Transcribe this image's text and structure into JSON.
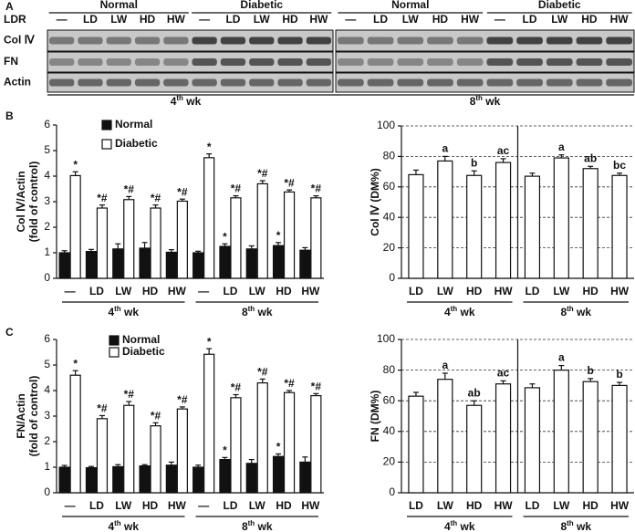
{
  "panel_a": {
    "label": "A",
    "row_header": "LDR",
    "conditions": [
      "Normal",
      "Diabetic",
      "Normal",
      "Diabetic"
    ],
    "lanes": [
      "—",
      "LD",
      "LW",
      "HD",
      "HW",
      "—",
      "LD",
      "LW",
      "HD",
      "HW",
      "—",
      "LD",
      "LW",
      "HD",
      "HW",
      "—",
      "LD",
      "LW",
      "HD",
      "HW"
    ],
    "rows": [
      "Col Ⅳ",
      "FN",
      "Actin"
    ],
    "weeks": [
      "4th wk",
      "8th wk"
    ]
  },
  "chart_data": [
    {
      "type": "grouped_bar",
      "panel": "B",
      "ylabel": [
        "Col Ⅳ/Actin",
        "(fold of control)"
      ],
      "categories": [
        "—",
        "LD",
        "LW",
        "HD",
        "HW",
        "—",
        "LD",
        "LW",
        "HD",
        "HW"
      ],
      "groups": [
        "4th wk",
        "8th wk"
      ],
      "ylim": [
        0,
        6
      ],
      "yticks": [
        0,
        1,
        2,
        3,
        4,
        5,
        6
      ],
      "grid": false,
      "series": [
        {
          "name": "Normal",
          "color": "#111111",
          "values": [
            1.0,
            1.05,
            1.15,
            1.18,
            1.02,
            1.0,
            1.25,
            1.15,
            1.28,
            1.1
          ],
          "errors": [
            0.08,
            0.08,
            0.2,
            0.22,
            0.1,
            0.06,
            0.1,
            0.12,
            0.12,
            0.1
          ],
          "annotations": [
            null,
            null,
            null,
            null,
            null,
            null,
            "*",
            null,
            "*",
            null
          ]
        },
        {
          "name": "Diabetic",
          "color": "#ffffff",
          "values": [
            4.02,
            2.75,
            3.08,
            2.75,
            3.02,
            4.72,
            3.15,
            3.7,
            3.38,
            3.15
          ],
          "errors": [
            0.15,
            0.12,
            0.12,
            0.12,
            0.08,
            0.15,
            0.08,
            0.12,
            0.08,
            0.08
          ],
          "annotations": [
            "*",
            "*#",
            "*#",
            "*#",
            "*#",
            "*",
            "*#",
            "*#",
            "*#",
            "*#"
          ]
        }
      ]
    },
    {
      "type": "bar",
      "ylabel": [
        "Col Ⅳ (DM%)"
      ],
      "categories": [
        "LD",
        "LW",
        "HD",
        "HW",
        "LD",
        "LW",
        "HD",
        "HW"
      ],
      "groups": [
        "4th wk",
        "8th wk"
      ],
      "ylim": [
        0,
        100
      ],
      "yticks": [
        0,
        20,
        40,
        60,
        80,
        100
      ],
      "grid": true,
      "color": "#ffffff",
      "values": [
        68,
        77,
        67.5,
        76,
        67,
        79,
        72,
        67.5
      ],
      "errors": [
        3,
        3,
        3,
        2.5,
        2,
        2,
        1.5,
        1.5
      ],
      "annotations": [
        null,
        "a",
        "b",
        "ac",
        null,
        "a",
        "ab",
        "bc"
      ]
    },
    {
      "type": "grouped_bar",
      "panel": "C",
      "ylabel": [
        "FN/Actin",
        "(fold of control)"
      ],
      "categories": [
        "—",
        "LD",
        "LW",
        "HD",
        "HW",
        "—",
        "LD",
        "LW",
        "HD",
        "HW"
      ],
      "groups": [
        "4th wk",
        "8th wk"
      ],
      "ylim": [
        0,
        6
      ],
      "yticks": [
        0,
        1,
        2,
        3,
        4,
        5,
        6
      ],
      "grid": false,
      "series": [
        {
          "name": "Normal",
          "color": "#111111",
          "values": [
            1.0,
            0.98,
            1.02,
            1.05,
            1.08,
            1.0,
            1.3,
            1.15,
            1.42,
            1.2
          ],
          "errors": [
            0.07,
            0.05,
            0.08,
            0.05,
            0.12,
            0.08,
            0.08,
            0.15,
            0.1,
            0.2
          ],
          "annotations": [
            null,
            null,
            null,
            null,
            null,
            null,
            "*",
            null,
            "*",
            null
          ]
        },
        {
          "name": "Diabetic",
          "color": "#ffffff",
          "values": [
            4.6,
            2.9,
            3.42,
            2.62,
            3.28,
            5.42,
            3.72,
            4.3,
            3.92,
            3.8
          ],
          "errors": [
            0.18,
            0.12,
            0.15,
            0.12,
            0.08,
            0.22,
            0.12,
            0.15,
            0.08,
            0.08
          ],
          "annotations": [
            "*",
            "*#",
            "*#",
            "*#",
            "*#",
            "*",
            "*#",
            "*#",
            "*#",
            "*#"
          ]
        }
      ]
    },
    {
      "type": "bar",
      "ylabel": [
        "FN (DM%)"
      ],
      "categories": [
        "LD",
        "LW",
        "HD",
        "HW",
        "LD",
        "LW",
        "HD",
        "HW"
      ],
      "groups": [
        "4th wk",
        "8th wk"
      ],
      "ylim": [
        0,
        100
      ],
      "yticks": [
        0,
        20,
        40,
        60,
        80,
        100
      ],
      "grid": true,
      "color": "#ffffff",
      "values": [
        63,
        74,
        57,
        71,
        68.5,
        80,
        72.5,
        70
      ],
      "errors": [
        2.5,
        4,
        3,
        2,
        2.5,
        3,
        2,
        2
      ],
      "annotations": [
        null,
        "a",
        "ab",
        "ac",
        null,
        "a",
        "b",
        "b"
      ]
    }
  ]
}
